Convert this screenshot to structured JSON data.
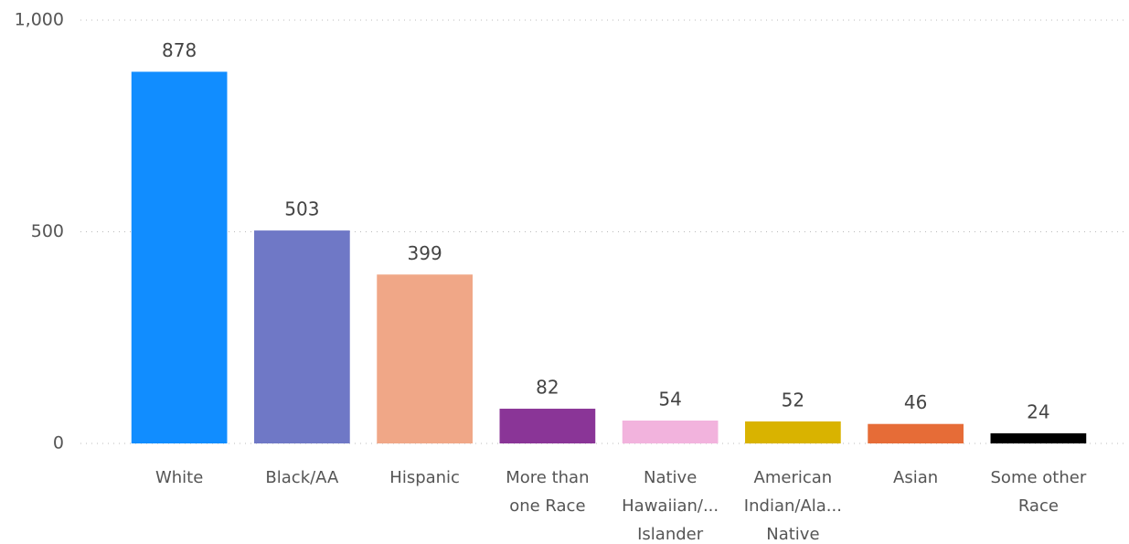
{
  "chart_data": {
    "type": "bar",
    "categories": [
      "White",
      "Black/AA",
      "Hispanic",
      "More than one Race",
      "Native Hawaiian/... Islander",
      "American Indian/Ala... Native",
      "Asian",
      "Some other Race"
    ],
    "values": [
      878,
      503,
      399,
      82,
      54,
      52,
      46,
      24
    ],
    "colors": [
      "#118DFF",
      "#6F78C6",
      "#F0A787",
      "#8A3597",
      "#F2B3DD",
      "#D9B300",
      "#E66C37",
      "#000000"
    ],
    "ylim": [
      0,
      1000
    ],
    "yticks": [
      0,
      500,
      {
        "value": 1000,
        "label": "1,000"
      }
    ],
    "grid": true
  }
}
